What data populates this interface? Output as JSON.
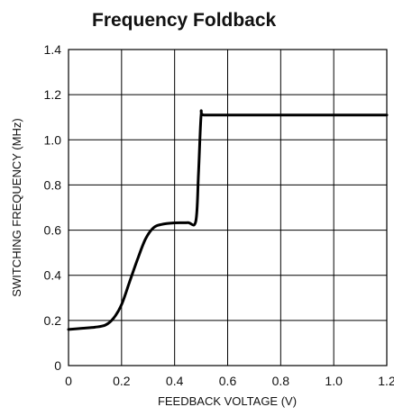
{
  "chart_data": {
    "type": "line",
    "title": "Frequency Foldback",
    "xlabel": "FEEDBACK VOLTAGE (V)",
    "ylabel": "SWITCHING FREQUENCY (MHz)",
    "xlim": [
      0,
      1.2
    ],
    "ylim": [
      0,
      1.4
    ],
    "x_ticks": [
      "0",
      "0.2",
      "0.4",
      "0.6",
      "0.8",
      "1.0",
      "1.2"
    ],
    "y_ticks": [
      "0",
      "0.2",
      "0.4",
      "0.6",
      "0.8",
      "1.0",
      "1.2",
      "1.4"
    ],
    "grid": true,
    "series": [
      {
        "x": [
          0,
          0.05,
          0.1,
          0.14,
          0.17,
          0.2,
          0.23,
          0.26,
          0.29,
          0.32,
          0.35,
          0.4,
          0.45,
          0.48,
          0.49,
          0.5,
          0.51,
          0.6,
          0.8,
          1.0,
          1.2
        ],
        "y": [
          0.16,
          0.165,
          0.17,
          0.18,
          0.21,
          0.27,
          0.37,
          0.47,
          0.56,
          0.61,
          0.625,
          0.632,
          0.633,
          0.64,
          0.85,
          1.11,
          1.11,
          1.11,
          1.11,
          1.11,
          1.11
        ],
        "color": "#000000"
      }
    ]
  }
}
